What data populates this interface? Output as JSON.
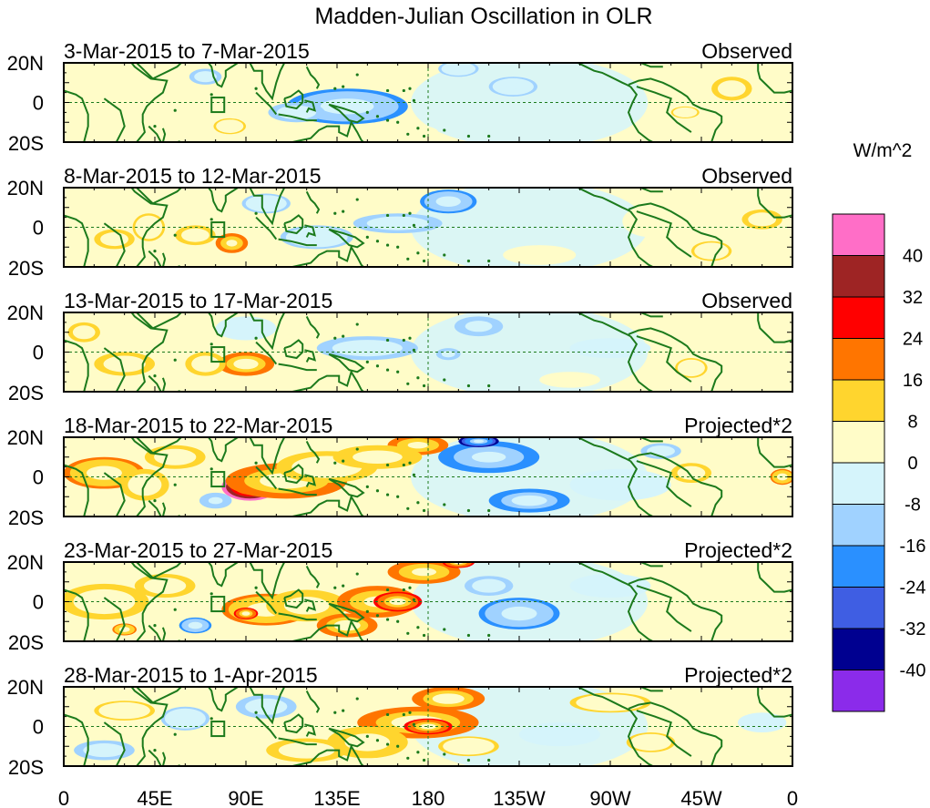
{
  "chart_data": {
    "type": "heatmap",
    "title": "Madden-Julian Oscillation in OLR",
    "units_label": "W/m^2",
    "x_ticks": [
      "0",
      "45E",
      "90E",
      "135E",
      "180",
      "135W",
      "90W",
      "45W",
      "0"
    ],
    "y_ticks": [
      "20N",
      "0",
      "20S"
    ],
    "xlim_deg_east": [
      0,
      360
    ],
    "ylim_deg": [
      -20,
      20
    ],
    "colorbar": {
      "levels": [
        "40",
        "32",
        "24",
        "16",
        "8",
        "0",
        "-8",
        "-16",
        "-24",
        "-32",
        "-40"
      ],
      "colors": [
        "#ff6ec7",
        "#9e2424",
        "#ff0000",
        "#ff7500",
        "#ffd52e",
        "#fffcc8",
        "#d5f4fb",
        "#a0d2ff",
        "#2a90ff",
        "#3f5ee3",
        "#000090",
        "#8b2bea"
      ]
    },
    "panels": [
      {
        "dates": "3-Mar-2015 to 7-Mar-2015",
        "kind": "Observed",
        "blobs": [
          {
            "lon": 140,
            "lat": -2,
            "rx": 30,
            "ry": 9,
            "v": -18
          },
          {
            "lon": 115,
            "lat": -5,
            "rx": 14,
            "ry": 5,
            "v": -10
          },
          {
            "lon": 70,
            "lat": 13,
            "rx": 8,
            "ry": 4,
            "v": -12
          },
          {
            "lon": 222,
            "lat": 8,
            "rx": 12,
            "ry": 5,
            "v": -9
          },
          {
            "lon": 195,
            "lat": 17,
            "rx": 10,
            "ry": 4,
            "v": -9
          },
          {
            "lon": 330,
            "lat": 7,
            "rx": 10,
            "ry": 6,
            "v": 10
          },
          {
            "lon": 307,
            "lat": -5,
            "rx": 7,
            "ry": 3,
            "v": 8
          },
          {
            "lon": 82,
            "lat": -12,
            "rx": 8,
            "ry": 4,
            "v": 8
          },
          {
            "lon": 20,
            "lat": 5,
            "rx": 20,
            "ry": 8,
            "v": 5
          },
          {
            "lon": 45,
            "lat": -10,
            "rx": 10,
            "ry": 4,
            "v": 6
          },
          {
            "lon": 170,
            "lat": -15,
            "rx": 15,
            "ry": 4,
            "v": 6
          }
        ]
      },
      {
        "dates": "8-Mar-2015 to 12-Mar-2015",
        "kind": "Observed",
        "blobs": [
          {
            "lon": 83,
            "lat": -8,
            "rx": 8,
            "ry": 5,
            "v": 22
          },
          {
            "lon": 65,
            "lat": -4,
            "rx": 10,
            "ry": 5,
            "v": 10
          },
          {
            "lon": 25,
            "lat": -6,
            "rx": 10,
            "ry": 5,
            "v": 10
          },
          {
            "lon": 42,
            "lat": 0,
            "rx": 8,
            "ry": 7,
            "v": 9
          },
          {
            "lon": 190,
            "lat": 13,
            "rx": 14,
            "ry": 6,
            "v": -18
          },
          {
            "lon": 165,
            "lat": 2,
            "rx": 22,
            "ry": 5,
            "v": -12
          },
          {
            "lon": 125,
            "lat": -5,
            "rx": 18,
            "ry": 6,
            "v": -9
          },
          {
            "lon": 100,
            "lat": 12,
            "rx": 12,
            "ry": 5,
            "v": -9
          },
          {
            "lon": 290,
            "lat": 3,
            "rx": 14,
            "ry": 8,
            "v": 6
          },
          {
            "lon": 345,
            "lat": 4,
            "rx": 10,
            "ry": 5,
            "v": 10
          },
          {
            "lon": 320,
            "lat": -12,
            "rx": 10,
            "ry": 5,
            "v": 8
          },
          {
            "lon": 235,
            "lat": -14,
            "rx": 18,
            "ry": 5,
            "v": 6
          },
          {
            "lon": 5,
            "lat": 15,
            "rx": 8,
            "ry": 5,
            "v": 6
          }
        ]
      },
      {
        "dates": "13-Mar-2015 to 17-Mar-2015",
        "kind": "Observed",
        "blobs": [
          {
            "lon": 90,
            "lat": -6,
            "rx": 14,
            "ry": 6,
            "v": 20
          },
          {
            "lon": 70,
            "lat": -6,
            "rx": 10,
            "ry": 6,
            "v": 10
          },
          {
            "lon": 30,
            "lat": -6,
            "rx": 15,
            "ry": 6,
            "v": 10
          },
          {
            "lon": 10,
            "lat": 10,
            "rx": 8,
            "ry": 5,
            "v": 10
          },
          {
            "lon": 205,
            "lat": 13,
            "rx": 12,
            "ry": 5,
            "v": -14
          },
          {
            "lon": 150,
            "lat": 2,
            "rx": 25,
            "ry": 6,
            "v": -10
          },
          {
            "lon": 190,
            "lat": -1,
            "rx": 6,
            "ry": 3,
            "v": -14
          },
          {
            "lon": 270,
            "lat": 2,
            "rx": 20,
            "ry": 5,
            "v": -8
          },
          {
            "lon": 310,
            "lat": -8,
            "rx": 8,
            "ry": 5,
            "v": 8
          },
          {
            "lon": 345,
            "lat": 5,
            "rx": 12,
            "ry": 5,
            "v": 6
          },
          {
            "lon": 250,
            "lat": -14,
            "rx": 15,
            "ry": 4,
            "v": 5
          },
          {
            "lon": 90,
            "lat": 12,
            "rx": 15,
            "ry": 6,
            "v": -6
          }
        ]
      },
      {
        "dates": "18-Mar-2015 to 22-Mar-2015",
        "kind": "Projected*2",
        "blobs": [
          {
            "lon": 92,
            "lat": -5,
            "rx": 14,
            "ry": 7,
            "v": 44
          },
          {
            "lon": 110,
            "lat": -2,
            "rx": 30,
            "ry": 9,
            "v": 20
          },
          {
            "lon": 130,
            "lat": 5,
            "rx": 25,
            "ry": 8,
            "v": 12
          },
          {
            "lon": 175,
            "lat": 16,
            "rx": 15,
            "ry": 5,
            "v": 22
          },
          {
            "lon": 155,
            "lat": 10,
            "rx": 22,
            "ry": 6,
            "v": 14
          },
          {
            "lon": 20,
            "lat": 2,
            "rx": 20,
            "ry": 8,
            "v": 16
          },
          {
            "lon": 40,
            "lat": -4,
            "rx": 12,
            "ry": 8,
            "v": 12
          },
          {
            "lon": 55,
            "lat": 10,
            "rx": 15,
            "ry": 6,
            "v": 12
          },
          {
            "lon": 210,
            "lat": 10,
            "rx": 25,
            "ry": 8,
            "v": -22
          },
          {
            "lon": 205,
            "lat": 18,
            "rx": 10,
            "ry": 3,
            "v": -34
          },
          {
            "lon": 230,
            "lat": -12,
            "rx": 20,
            "ry": 6,
            "v": -20
          },
          {
            "lon": 275,
            "lat": -4,
            "rx": 25,
            "ry": 8,
            "v": -8
          },
          {
            "lon": 75,
            "lat": -12,
            "rx": 8,
            "ry": 4,
            "v": -16
          },
          {
            "lon": 310,
            "lat": 2,
            "rx": 10,
            "ry": 5,
            "v": 10
          },
          {
            "lon": 355,
            "lat": 0,
            "rx": 6,
            "ry": 4,
            "v": 18
          },
          {
            "lon": 295,
            "lat": 13,
            "rx": 10,
            "ry": 4,
            "v": -10
          }
        ]
      },
      {
        "dates": "23-Mar-2015 to 27-Mar-2015",
        "kind": "Projected*2",
        "blobs": [
          {
            "lon": 100,
            "lat": -4,
            "rx": 22,
            "ry": 8,
            "v": 16
          },
          {
            "lon": 90,
            "lat": -6,
            "rx": 6,
            "ry": 3,
            "v": 28
          },
          {
            "lon": 120,
            "lat": -2,
            "rx": 20,
            "ry": 8,
            "v": 14
          },
          {
            "lon": 155,
            "lat": 0,
            "rx": 20,
            "ry": 8,
            "v": 22
          },
          {
            "lon": 165,
            "lat": 0,
            "rx": 12,
            "ry": 5,
            "v": 28
          },
          {
            "lon": 140,
            "lat": -12,
            "rx": 15,
            "ry": 6,
            "v": 20
          },
          {
            "lon": 178,
            "lat": 15,
            "rx": 18,
            "ry": 6,
            "v": 22
          },
          {
            "lon": 195,
            "lat": 20,
            "rx": 8,
            "ry": 3,
            "v": 28
          },
          {
            "lon": 20,
            "lat": 0,
            "rx": 22,
            "ry": 9,
            "v": 10
          },
          {
            "lon": 50,
            "lat": 8,
            "rx": 15,
            "ry": 6,
            "v": 10
          },
          {
            "lon": 225,
            "lat": -6,
            "rx": 20,
            "ry": 8,
            "v": -18
          },
          {
            "lon": 210,
            "lat": 8,
            "rx": 12,
            "ry": 5,
            "v": -12
          },
          {
            "lon": 270,
            "lat": 8,
            "rx": 20,
            "ry": 6,
            "v": -8
          },
          {
            "lon": 65,
            "lat": -12,
            "rx": 8,
            "ry": 4,
            "v": -18
          },
          {
            "lon": 30,
            "lat": -14,
            "rx": 6,
            "ry": 3,
            "v": 16
          },
          {
            "lon": 320,
            "lat": 0,
            "rx": 15,
            "ry": 6,
            "v": 6
          }
        ]
      },
      {
        "dates": "28-Mar-2015 to 1-Apr-2015",
        "kind": "Projected*2",
        "blobs": [
          {
            "lon": 175,
            "lat": 2,
            "rx": 30,
            "ry": 8,
            "v": 20
          },
          {
            "lon": 180,
            "lat": 0,
            "rx": 12,
            "ry": 4,
            "v": 28
          },
          {
            "lon": 190,
            "lat": 14,
            "rx": 18,
            "ry": 6,
            "v": 20
          },
          {
            "lon": 150,
            "lat": -8,
            "rx": 20,
            "ry": 8,
            "v": 14
          },
          {
            "lon": 120,
            "lat": -12,
            "rx": 20,
            "ry": 6,
            "v": 10
          },
          {
            "lon": 200,
            "lat": -10,
            "rx": 15,
            "ry": 5,
            "v": 8
          },
          {
            "lon": 100,
            "lat": 10,
            "rx": 15,
            "ry": 6,
            "v": -10
          },
          {
            "lon": 60,
            "lat": 4,
            "rx": 12,
            "ry": 6,
            "v": -9
          },
          {
            "lon": 20,
            "lat": -12,
            "rx": 15,
            "ry": 5,
            "v": -10
          },
          {
            "lon": 30,
            "lat": 8,
            "rx": 15,
            "ry": 5,
            "v": 8
          },
          {
            "lon": 270,
            "lat": 12,
            "rx": 20,
            "ry": 5,
            "v": 8
          },
          {
            "lon": 290,
            "lat": -8,
            "rx": 12,
            "ry": 5,
            "v": 8
          },
          {
            "lon": 245,
            "lat": -4,
            "rx": 20,
            "ry": 6,
            "v": -7
          },
          {
            "lon": 345,
            "lat": 2,
            "rx": 12,
            "ry": 5,
            "v": -6
          },
          {
            "lon": 80,
            "lat": -14,
            "rx": 10,
            "ry": 4,
            "v": 6
          }
        ]
      }
    ]
  }
}
